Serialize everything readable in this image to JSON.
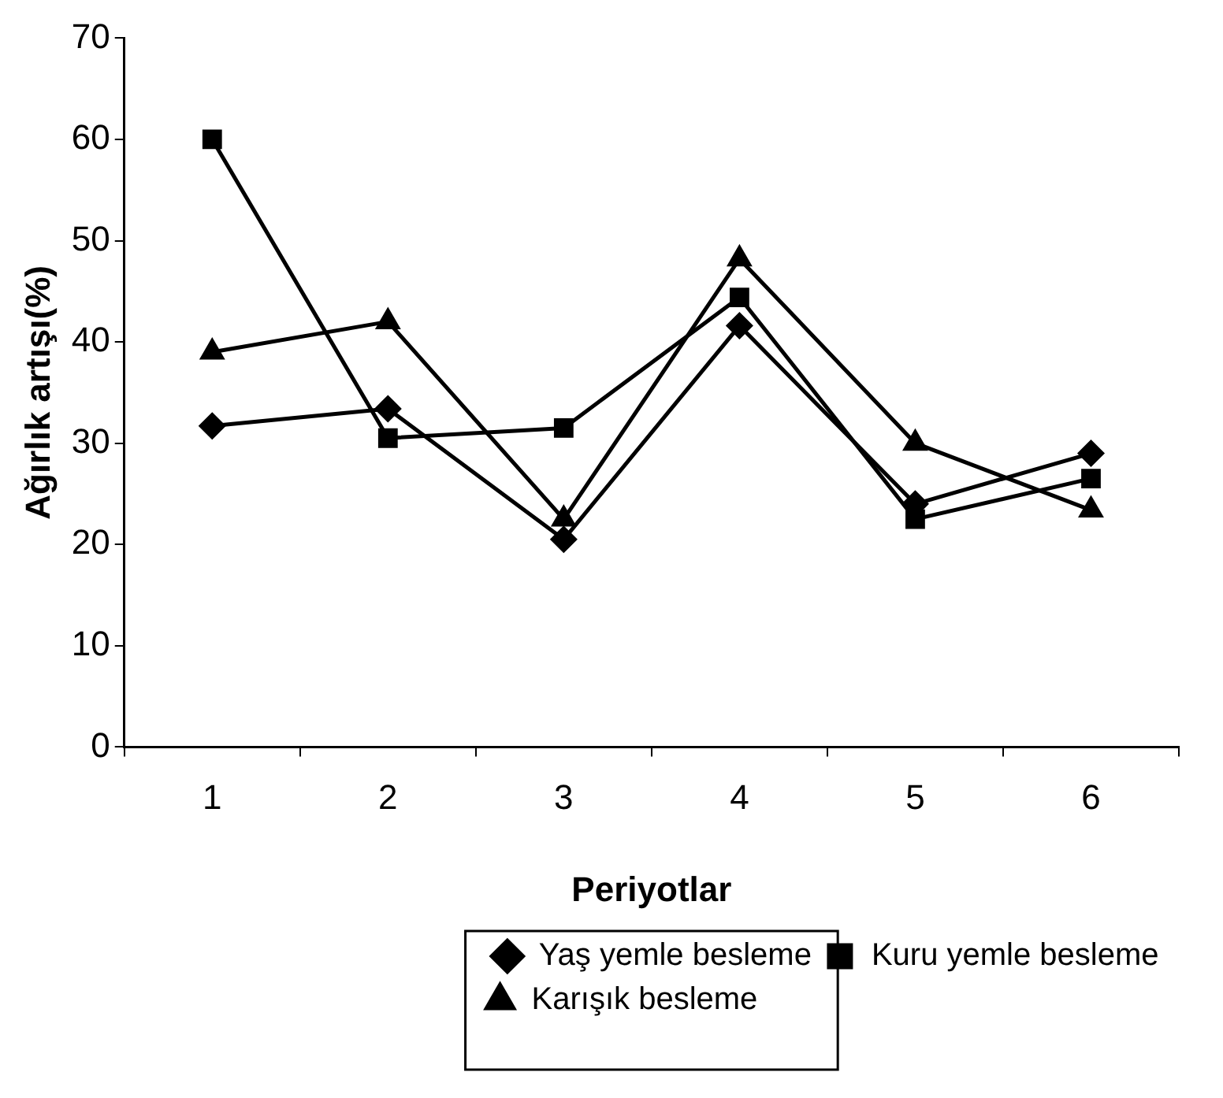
{
  "chart_data": {
    "type": "line",
    "xlabel": "Periyotlar",
    "ylabel": "Ağırlık artışı(%)",
    "categories": [
      "1",
      "2",
      "3",
      "4",
      "5",
      "6"
    ],
    "series": [
      {
        "name": "Yaş yemle besleme",
        "color": "#000000",
        "marker": "diamond",
        "values": [
          31.7,
          33.4,
          20.5,
          41.6,
          24,
          29
        ]
      },
      {
        "name": "Kuru yemle besleme",
        "color": "#000000",
        "marker": "square",
        "values": [
          60,
          30.5,
          31.5,
          44.4,
          22.5,
          26.5
        ]
      },
      {
        "name": "Karışık besleme",
        "color": "#000000",
        "marker": "triangle",
        "values": [
          39,
          42,
          22.5,
          48.2,
          30,
          23.4
        ]
      }
    ],
    "ylim": [
      0,
      70
    ],
    "yticks": [
      0,
      10,
      20,
      30,
      40,
      50,
      60,
      70
    ],
    "grid": false,
    "legend": "bottom"
  }
}
